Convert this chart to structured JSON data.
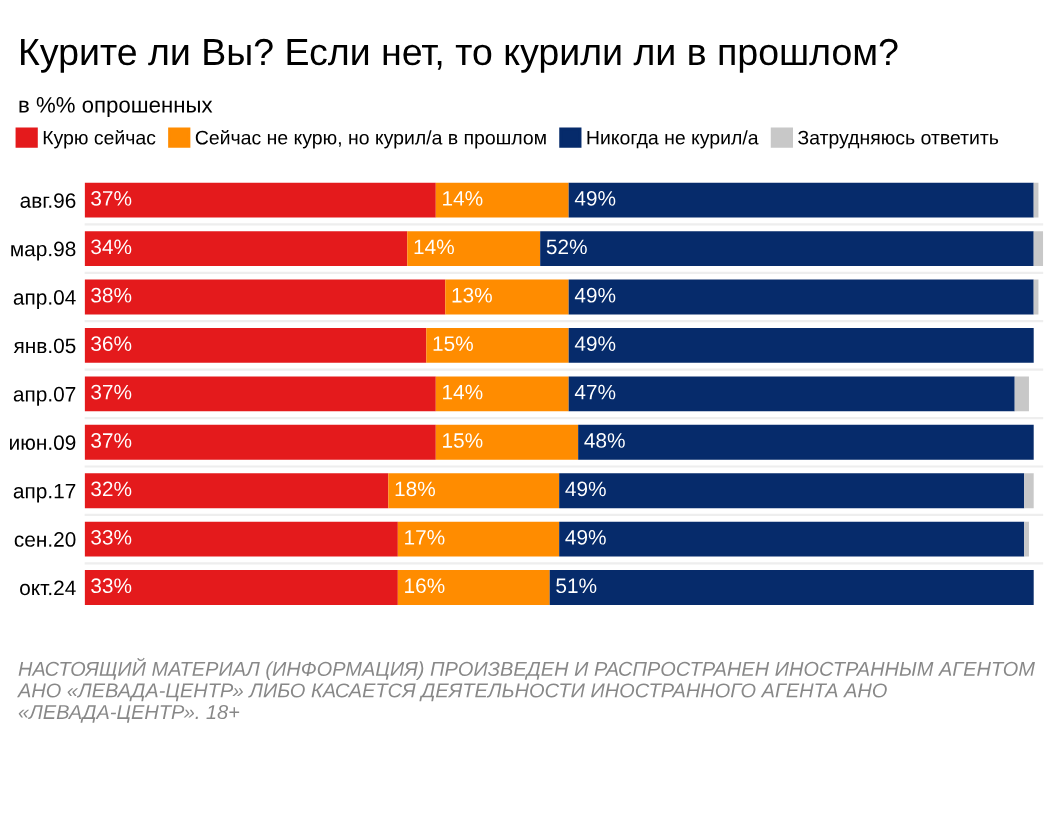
{
  "chart_data": {
    "type": "bar",
    "orientation": "horizontal",
    "stacked": true,
    "title": "Курите ли Вы? Если нет, то курили ли в прошлом?",
    "subtitle": "в %% опрошенных",
    "categories": [
      "авг.96",
      "мар.98",
      "апр.04",
      "янв.05",
      "апр.07",
      "июн.09",
      "апр.17",
      "сен.20",
      "окт.24"
    ],
    "series": [
      {
        "name": "Курю сейчас",
        "color": "#e41a1c",
        "values": [
          37,
          34,
          38,
          36,
          37,
          37,
          32,
          33,
          33
        ],
        "value_labels": [
          "37%",
          "34%",
          "38%",
          "36%",
          "37%",
          "37%",
          "32%",
          "33%",
          "33%"
        ]
      },
      {
        "name": "Сейчас не курю, но курил/а в прошлом",
        "color": "#ff8c00",
        "values": [
          14,
          14,
          13,
          15,
          14,
          15,
          18,
          17,
          16
        ],
        "value_labels": [
          "14%",
          "14%",
          "13%",
          "15%",
          "14%",
          "15%",
          "18%",
          "17%",
          "16%"
        ]
      },
      {
        "name": "Никогда не курил/а",
        "color": "#062b6b",
        "values": [
          49,
          52,
          49,
          49,
          47,
          48,
          49,
          49,
          51
        ],
        "value_labels": [
          "49%",
          "52%",
          "49%",
          "49%",
          "47%",
          "48%",
          "49%",
          "49%",
          "51%"
        ]
      },
      {
        "name": "Затрудняюсь ответить",
        "color": "#c8c8c8",
        "values": [
          0.5,
          1,
          0.5,
          0,
          1.5,
          0,
          1,
          0.5,
          0
        ],
        "value_labels": [
          null,
          null,
          null,
          null,
          null,
          null,
          null,
          null,
          null
        ]
      }
    ],
    "legend": "top left",
    "annotations": [
      "НАСТОЯЩИЙ МАТЕРИАЛ (ИНФОРМАЦИЯ) ПРОИЗВЕДЕН И РАСПРОСТРАНЕН ИНОСТРАННЫМ АГЕНТОМ АНО «ЛЕВАДА-ЦЕНТР» ЛИБО КАСАЕТСЯ ДЕЯТЕЛЬНОСТИ ИНОСТРАННОГО АГЕНТА АНО «ЛЕВАДА-ЦЕНТР». 18+"
    ]
  }
}
